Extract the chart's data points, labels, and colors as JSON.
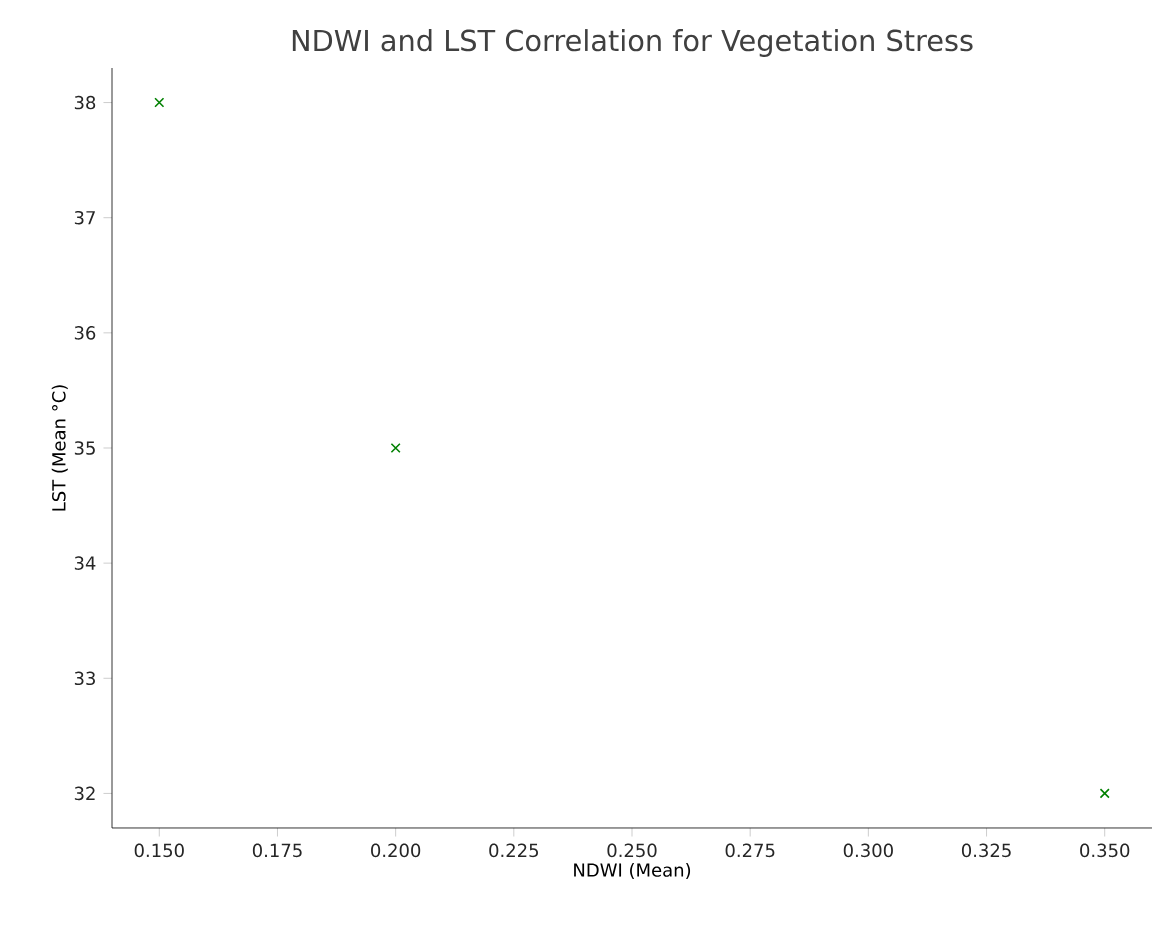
{
  "chart_data": {
    "type": "scatter",
    "title": "NDWI and LST Correlation for Vegetation Stress",
    "xlabel": "NDWI (Mean)",
    "ylabel": "LST (Mean °C)",
    "x": [
      0.15,
      0.2,
      0.35
    ],
    "values": [
      38,
      35,
      32
    ],
    "color": "#008000",
    "marker": "cross",
    "xlim": [
      0.14,
      0.36
    ],
    "ylim": [
      31.7,
      38.3
    ],
    "xticks": [
      {
        "value": 0.15,
        "label": "0.150"
      },
      {
        "value": 0.175,
        "label": "0.175"
      },
      {
        "value": 0.2,
        "label": "0.200"
      },
      {
        "value": 0.225,
        "label": "0.225"
      },
      {
        "value": 0.25,
        "label": "0.250"
      },
      {
        "value": 0.275,
        "label": "0.275"
      },
      {
        "value": 0.3,
        "label": "0.300"
      },
      {
        "value": 0.325,
        "label": "0.325"
      },
      {
        "value": 0.35,
        "label": "0.350"
      }
    ],
    "yticks": [
      32,
      33,
      34,
      35,
      36,
      37,
      38
    ]
  }
}
